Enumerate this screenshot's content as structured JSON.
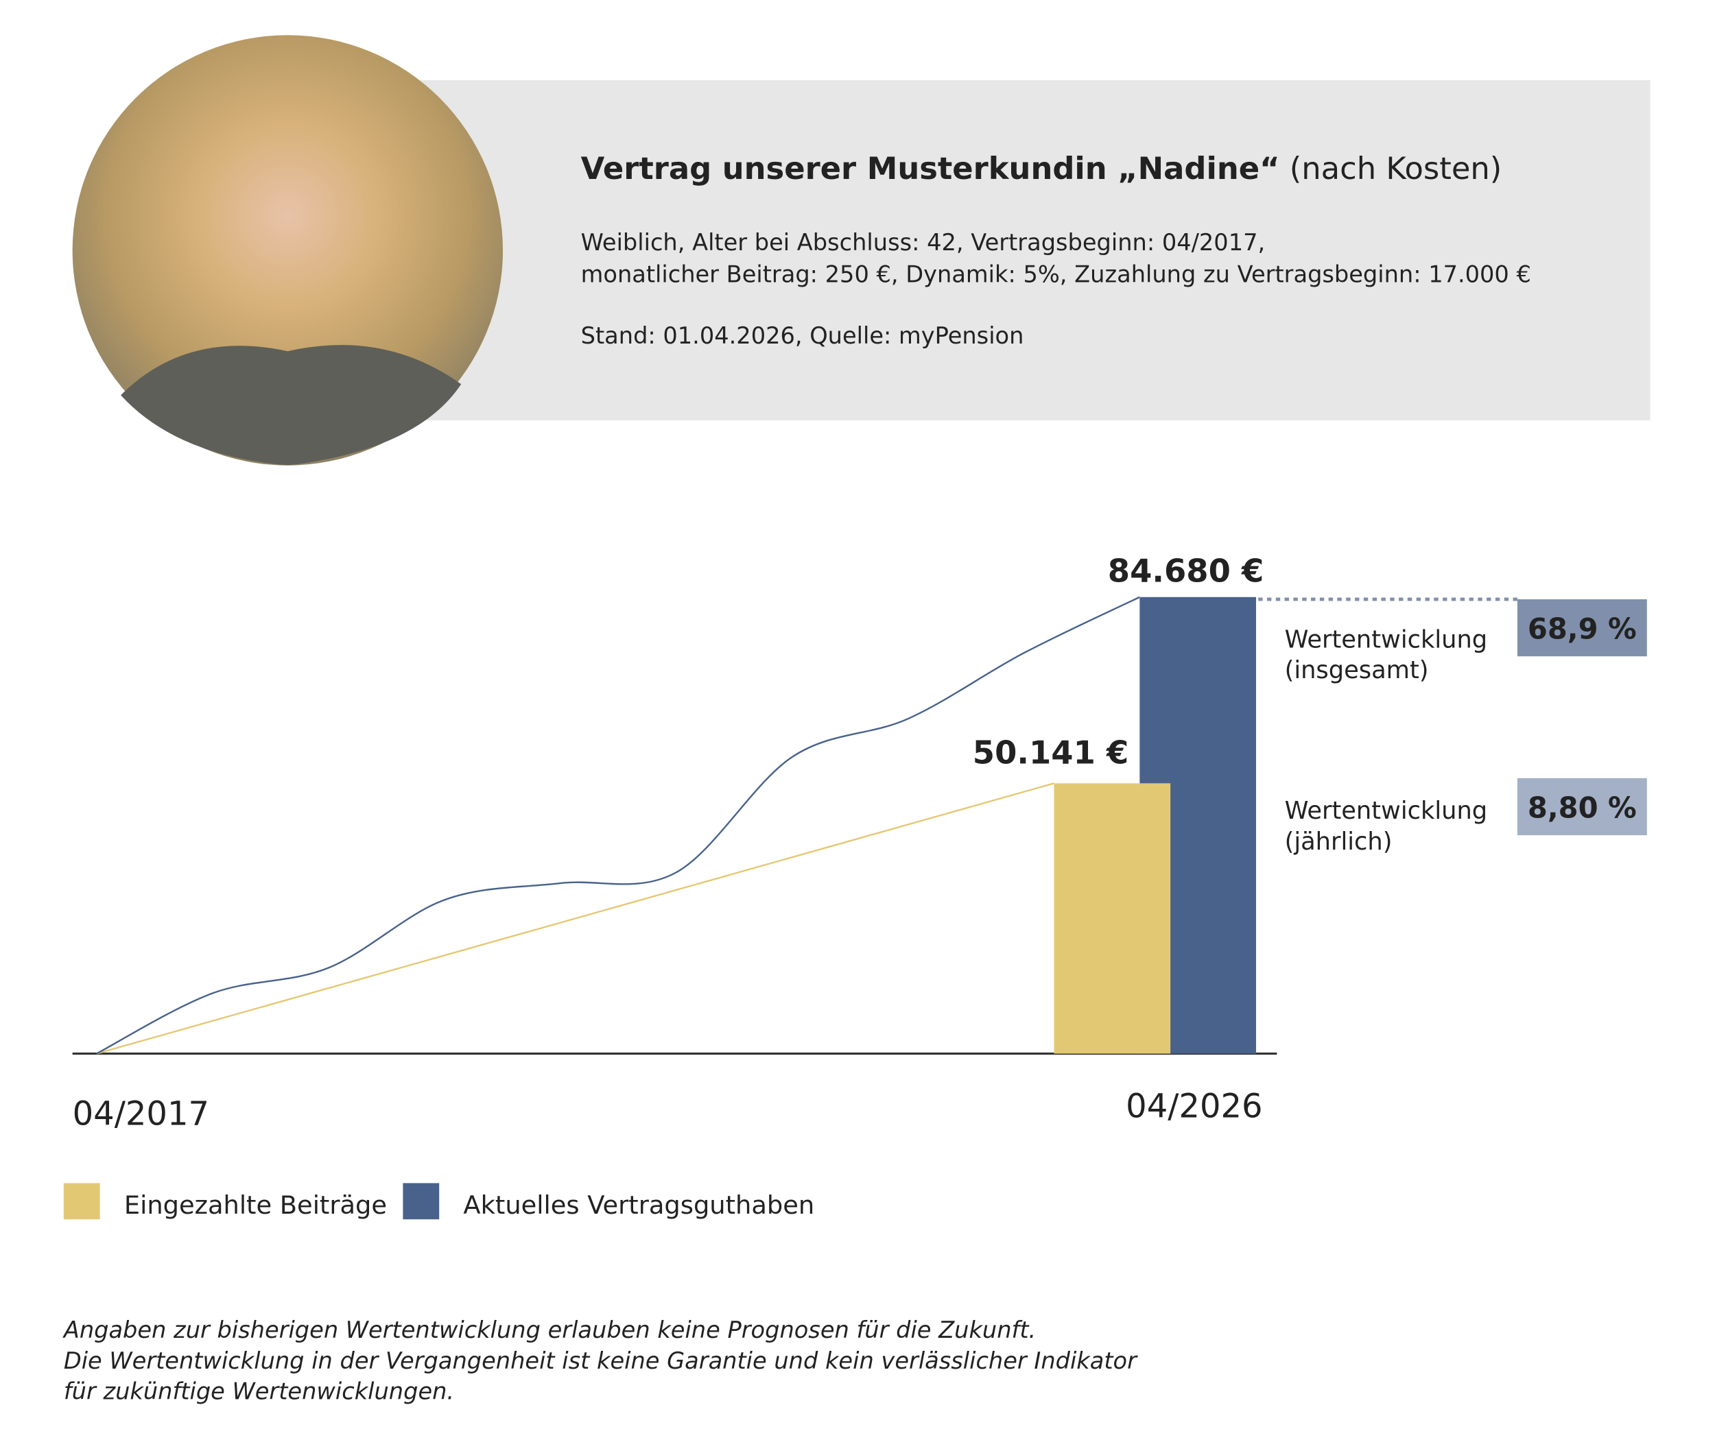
{
  "header": {
    "title_bold": "Vertrag unserer Musterkundin „Nadine“",
    "title_normal": " (nach Kosten)",
    "details": [
      "Weiblich, Alter bei Abschluss: 42, Vertragsbeginn: 04/2017,",
      "monatlicher Beitrag: 250 €, Dynamik: 5%, Zuzahlung zu Vertragsbeginn: 17.000 €"
    ],
    "source": "Stand: 01.04.2026, Quelle: myPension"
  },
  "chart_data": {
    "type": "line",
    "categories": [
      "04/2017",
      null,
      null,
      null,
      null,
      null,
      null,
      null,
      null,
      "04/2026"
    ],
    "ylim": [
      0,
      84680
    ],
    "series": [
      {
        "name": "Eingezahlte Beiträge",
        "color": "#e3c874",
        "values": [
          0,
          5571,
          11142,
          16714,
          22285,
          27856,
          33427,
          38999,
          44570,
          50141
        ],
        "end_label": "50.141 €"
      },
      {
        "name": "Aktuelles Vertragsguthaben",
        "color": "#48628c",
        "values": [
          0,
          11200,
          15900,
          28500,
          31600,
          33600,
          55000,
          62100,
          74300,
          84680
        ],
        "end_label": "84.680 €"
      }
    ]
  },
  "kpis": [
    {
      "label": [
        "Wertentwicklung",
        "(insgesamt)"
      ],
      "value": "68,9 %",
      "color": "#8090ac"
    },
    {
      "label": [
        "Wertentwicklung",
        "(jährlich)"
      ],
      "value": "8,80 %",
      "color": "#a3b0c6"
    }
  ],
  "footer": [
    "Angaben zur bisherigen Wertentwicklung erlauben keine Prognosen für die Zukunft.",
    "Die Wertentwicklung in der Vergangenheit ist keine Garantie und kein verlässlicher Indikator",
    "für zukünftige Wertenwicklungen."
  ]
}
